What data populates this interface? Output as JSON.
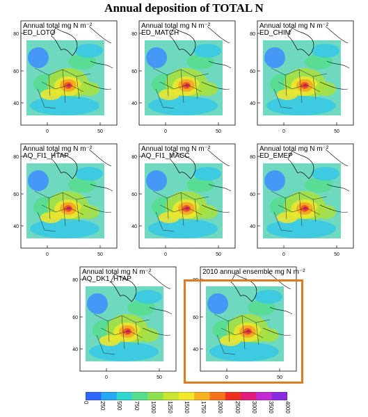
{
  "title": "Annual deposition of TOTAL N",
  "panels": [
    {
      "line1": "Annual total mg N m⁻²",
      "line2": "ED_LOTO"
    },
    {
      "line1": "Annual total mg N m⁻²",
      "line2": "ED_MATCH"
    },
    {
      "line1": "Annual total mg N m⁻²",
      "line2": "ED_CHIM"
    },
    {
      "line1": "Annual total mg N m⁻²",
      "line2": "AQ_FI1_HTAP"
    },
    {
      "line1": "Annual total mg N m⁻²",
      "line2": "AQ_FI1_MACC"
    },
    {
      "line1": "Annual total mg N m⁻²",
      "line2": "ED_EMEP"
    },
    {
      "line1": "Annual total mg N m⁻²",
      "line2": "AQ_DK1_HTAP"
    },
    {
      "line1": "2010 annual ensemble mg N m⁻²",
      "line2": ""
    }
  ],
  "axes": {
    "lat_ticks": [
      "80",
      "60",
      "40"
    ],
    "lon_ticks": [
      "0",
      "50"
    ]
  },
  "colorbar": {
    "ticks": [
      "0",
      "250",
      "500",
      "750",
      "1000",
      "1250",
      "1500",
      "1750",
      "2000",
      "2500",
      "3000",
      "3500",
      "4000"
    ],
    "colors": [
      "#2f66ff",
      "#25a9f5",
      "#34d7d0",
      "#58de8a",
      "#8fe04e",
      "#c9e432",
      "#f2e82a",
      "#f9b21f",
      "#f7731b",
      "#ee2f1f",
      "#e01d7a",
      "#c22ad2",
      "#8a2be2"
    ]
  }
}
